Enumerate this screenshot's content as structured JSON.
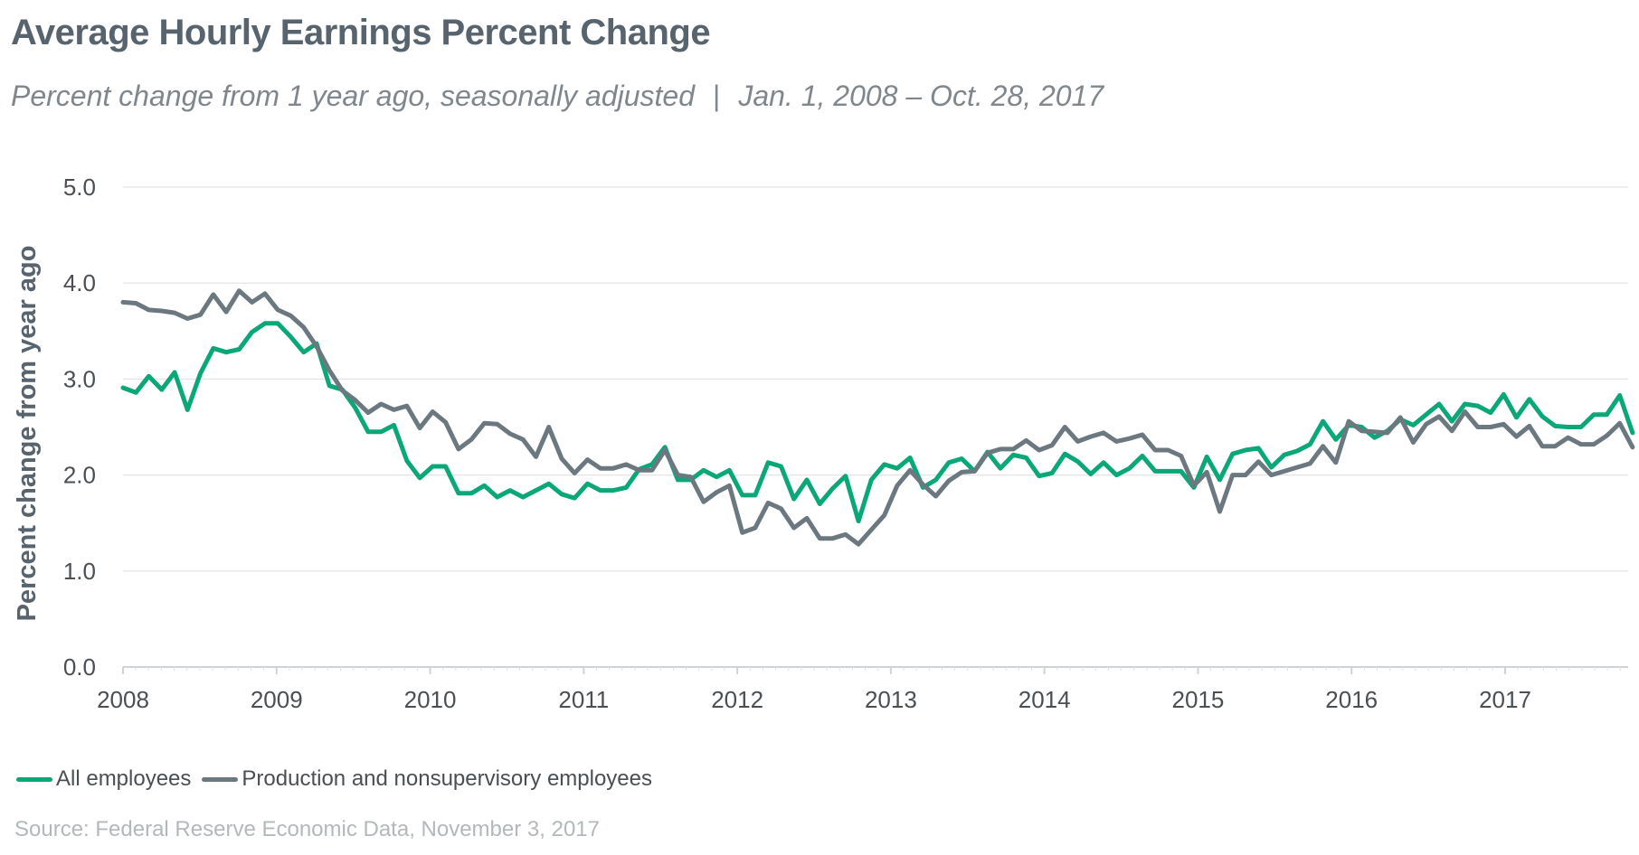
{
  "title": "Average Hourly Earnings Percent Change",
  "subtitle": {
    "left": "Percent change from 1 year ago, seasonally adjusted",
    "separator": "|",
    "right": "Jan. 1, 2008 – Oct. 28, 2017"
  },
  "source": "Source: Federal Reserve Economic Data, November 3, 2017",
  "colors": {
    "all": "#0aa778",
    "prod": "#6b7880",
    "grid": "#e3e3e3",
    "text": "#4a4f53"
  },
  "chart_data": {
    "type": "line",
    "ylabel": "Percent change from year ago",
    "xlabel": "",
    "ylim": [
      0,
      5
    ],
    "yticks": [
      "0.0",
      "1.0",
      "2.0",
      "3.0",
      "4.0",
      "5.0"
    ],
    "xticks": [
      "2008",
      "2009",
      "2010",
      "2011",
      "2012",
      "2013",
      "2014",
      "2015",
      "2016",
      "2017"
    ],
    "x_start": 2008.0,
    "x_step_months": 1,
    "x_end": 2017.83,
    "legend_position": "bottom-left",
    "series": [
      {
        "name": "All employees",
        "color": "#0aa778",
        "values": [
          2.91,
          2.86,
          3.03,
          2.89,
          3.07,
          2.68,
          3.06,
          3.32,
          3.28,
          3.31,
          3.49,
          3.58,
          3.58,
          3.44,
          3.28,
          3.37,
          2.93,
          2.89,
          2.7,
          2.45,
          2.45,
          2.52,
          2.15,
          1.97,
          2.09,
          2.09,
          1.81,
          1.81,
          1.89,
          1.77,
          1.84,
          1.77,
          1.84,
          1.91,
          1.8,
          1.76,
          1.91,
          1.84,
          1.84,
          1.87,
          2.06,
          2.11,
          2.29,
          1.95,
          1.95,
          2.05,
          1.98,
          2.05,
          1.79,
          1.79,
          2.13,
          2.09,
          1.75,
          1.95,
          1.7,
          1.86,
          1.99,
          1.52,
          1.95,
          2.11,
          2.07,
          2.18,
          1.87,
          1.95,
          2.13,
          2.17,
          2.04,
          2.24,
          2.07,
          2.21,
          2.18,
          1.99,
          2.02,
          2.22,
          2.14,
          2.01,
          2.13,
          2.0,
          2.07,
          2.2,
          2.04,
          2.04,
          2.04,
          1.87,
          2.19,
          1.95,
          2.22,
          2.26,
          2.28,
          2.08,
          2.21,
          2.25,
          2.32,
          2.56,
          2.37,
          2.52,
          2.5,
          2.39,
          2.46,
          2.58,
          2.52,
          2.63,
          2.74,
          2.56,
          2.74,
          2.72,
          2.65,
          2.84,
          2.6,
          2.79,
          2.61,
          2.51,
          2.5,
          2.5,
          2.63,
          2.63,
          2.83,
          2.44
        ]
      },
      {
        "name": "Production and nonsupervisory employees",
        "color": "#6b7880",
        "values": [
          3.8,
          3.79,
          3.72,
          3.71,
          3.69,
          3.63,
          3.67,
          3.88,
          3.7,
          3.92,
          3.8,
          3.89,
          3.72,
          3.66,
          3.54,
          3.34,
          3.09,
          2.88,
          2.78,
          2.65,
          2.74,
          2.68,
          2.72,
          2.49,
          2.66,
          2.55,
          2.27,
          2.37,
          2.54,
          2.53,
          2.43,
          2.37,
          2.19,
          2.5,
          2.17,
          2.02,
          2.16,
          2.07,
          2.07,
          2.11,
          2.05,
          2.05,
          2.26,
          2.0,
          1.98,
          1.72,
          1.82,
          1.89,
          1.4,
          1.45,
          1.71,
          1.65,
          1.45,
          1.55,
          1.34,
          1.34,
          1.38,
          1.28,
          1.43,
          1.58,
          1.89,
          2.05,
          1.9,
          1.78,
          1.94,
          2.03,
          2.04,
          2.23,
          2.27,
          2.27,
          2.36,
          2.26,
          2.31,
          2.5,
          2.35,
          2.4,
          2.44,
          2.35,
          2.38,
          2.42,
          2.26,
          2.26,
          2.2,
          1.89,
          2.03,
          1.62,
          2.0,
          2.0,
          2.14,
          2.0,
          2.04,
          2.08,
          2.12,
          2.3,
          2.13,
          2.56,
          2.46,
          2.45,
          2.44,
          2.6,
          2.34,
          2.53,
          2.61,
          2.46,
          2.66,
          2.5,
          2.5,
          2.53,
          2.4,
          2.51,
          2.3,
          2.3,
          2.39,
          2.32,
          2.32,
          2.41,
          2.54,
          2.29
        ]
      }
    ]
  }
}
